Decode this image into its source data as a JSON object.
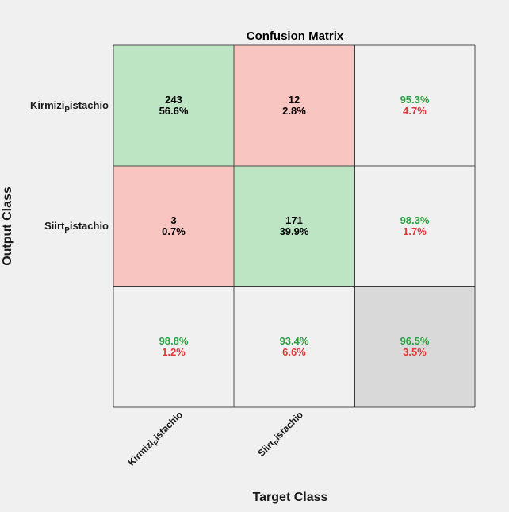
{
  "chart_data": {
    "type": "heatmap",
    "title": "Confusion Matrix",
    "xlabel": "Target Class",
    "ylabel": "Output Class",
    "classes": [
      {
        "base": "Kirmizi",
        "sub": "P",
        "rest": "istachio"
      },
      {
        "base": "Siirt",
        "sub": "P",
        "rest": "istachio"
      }
    ],
    "matrix": [
      [
        {
          "count": "243",
          "pct": "56.6%"
        },
        {
          "count": "12",
          "pct": "2.8%"
        }
      ],
      [
        {
          "count": "3",
          "pct": "0.7%"
        },
        {
          "count": "171",
          "pct": "39.9%"
        }
      ]
    ],
    "row_summary": [
      {
        "correct": "95.3%",
        "wrong": "4.7%"
      },
      {
        "correct": "98.3%",
        "wrong": "1.7%"
      }
    ],
    "col_summary": [
      {
        "correct": "98.8%",
        "wrong": "1.2%"
      },
      {
        "correct": "93.4%",
        "wrong": "6.6%"
      }
    ],
    "overall": {
      "correct": "96.5%",
      "wrong": "3.5%"
    }
  },
  "colors": {
    "correct_cell": "#bde5c3",
    "wrong_cell": "#f8c5c0",
    "summary_cell": "#f0f0f0",
    "overall_cell": "#d9d9d9",
    "correct_text": "#2ea043",
    "wrong_text": "#e0383a",
    "count_text": "#000000"
  }
}
